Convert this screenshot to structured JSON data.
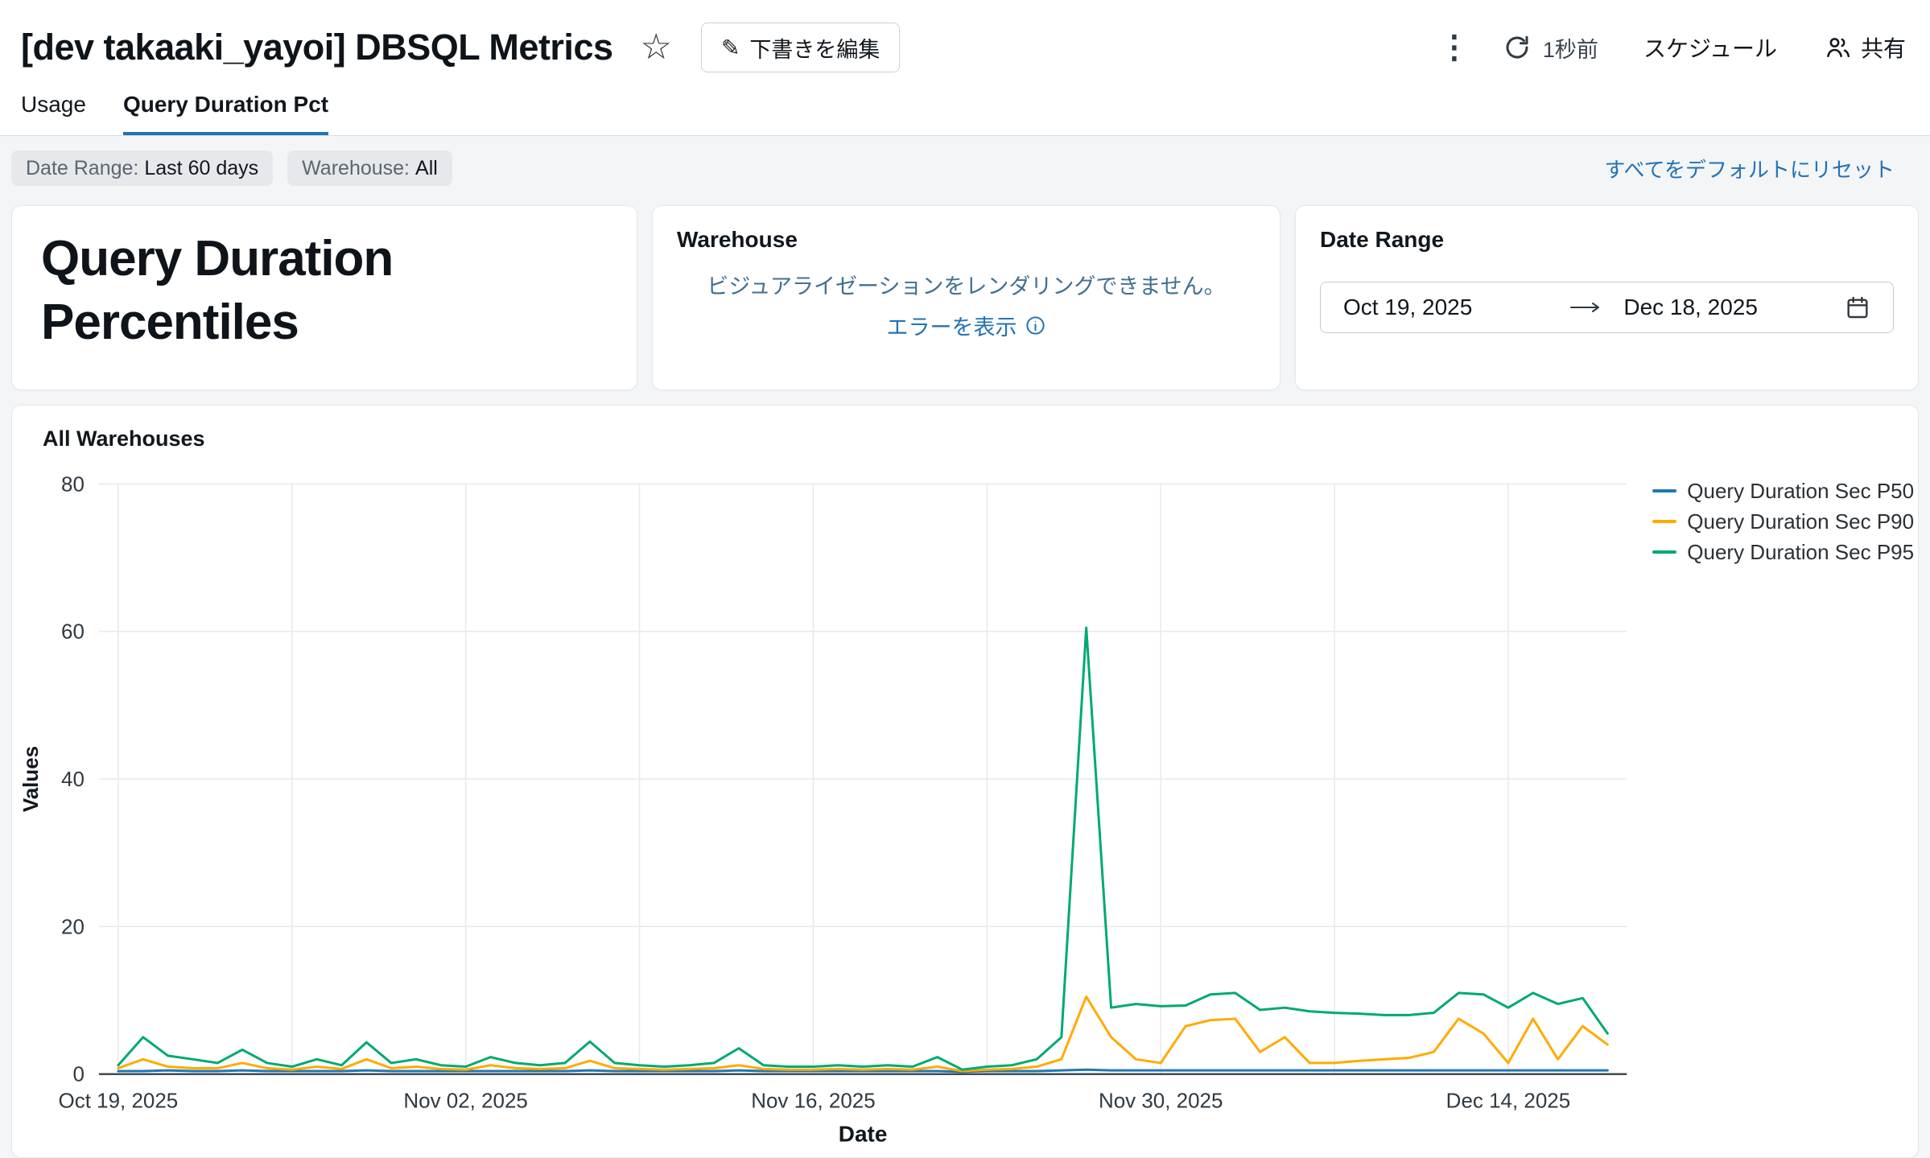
{
  "colors": {
    "accent": "#2272B4",
    "link": "#2272B4",
    "error_text": "#41708E",
    "series_p50": "#2077B4",
    "series_p90": "#FFAB00",
    "series_p95": "#00A972"
  },
  "icons": {
    "star": "☆",
    "pencil": "✎",
    "kebab": "⋮"
  },
  "header": {
    "title": "[dev takaaki_yayoi] DBSQL Metrics",
    "edit_draft_label": "下書きを編集",
    "last_refresh": "1秒前",
    "schedule_label": "スケジュール",
    "share_label": "共有"
  },
  "tabs": [
    {
      "label": "Usage",
      "active": false
    },
    {
      "label": "Query Duration Pct",
      "active": true
    }
  ],
  "filters": {
    "chips": [
      {
        "label": "Date Range:",
        "value": "Last 60 days"
      },
      {
        "label": "Warehouse:",
        "value": "All"
      }
    ],
    "reset_label": "すべてをデフォルトにリセット"
  },
  "cards": {
    "title_card": {
      "line1": "Query Duration",
      "line2": "Percentiles"
    },
    "warehouse_card": {
      "title": "Warehouse",
      "error_message": "ビジュアライゼーションをレンダリングできません。",
      "error_link": "エラーを表示"
    },
    "date_range_card": {
      "title": "Date Range",
      "start_date": "Oct 19, 2025",
      "end_date": "Dec 18, 2025"
    }
  },
  "chart_data": {
    "type": "line",
    "title": "All Warehouses",
    "xlabel": "Date",
    "ylabel": "Values",
    "ylim": [
      0,
      80
    ],
    "yticks": [
      0,
      20,
      40,
      60,
      80
    ],
    "grid": true,
    "legend_position": "right-top",
    "total_days": 60,
    "x_grid_interval_days": 7,
    "x_tick_days": [
      0,
      14,
      28,
      42,
      56
    ],
    "x_tick_labels": [
      "Oct 19, 2025",
      "Nov 02, 2025",
      "Nov 16, 2025",
      "Nov 30, 2025",
      "Dec 14, 2025"
    ],
    "x_start": "Oct 19, 2025",
    "x_end": "Dec 18, 2025",
    "series": [
      {
        "name": "Query Duration Sec P50",
        "color": "#2077B4",
        "values": [
          0.4,
          0.4,
          0.5,
          0.4,
          0.4,
          0.5,
          0.4,
          0.4,
          0.4,
          0.4,
          0.5,
          0.4,
          0.4,
          0.4,
          0.4,
          0.4,
          0.4,
          0.4,
          0.4,
          0.5,
          0.4,
          0.4,
          0.4,
          0.4,
          0.4,
          0.5,
          0.4,
          0.4,
          0.4,
          0.4,
          0.4,
          0.4,
          0.4,
          0.4,
          0.3,
          0.4,
          0.4,
          0.4,
          0.5,
          0.6,
          0.5,
          0.5,
          0.5,
          0.5,
          0.5,
          0.5,
          0.5,
          0.5,
          0.5,
          0.5,
          0.5,
          0.5,
          0.5,
          0.5,
          0.5,
          0.5,
          0.5,
          0.5,
          0.5,
          0.5,
          0.5
        ]
      },
      {
        "name": "Query Duration Sec P90",
        "color": "#FFAB00",
        "values": [
          0.8,
          2,
          1,
          0.8,
          0.8,
          1.5,
          0.8,
          0.6,
          1,
          0.7,
          2,
          0.8,
          1,
          0.7,
          0.6,
          1.2,
          0.8,
          0.7,
          0.8,
          1.8,
          0.8,
          0.7,
          0.6,
          0.7,
          0.8,
          1.2,
          0.7,
          0.6,
          0.6,
          0.7,
          0.6,
          0.7,
          0.6,
          1,
          0.4,
          0.6,
          0.7,
          1,
          2,
          10.5,
          5,
          2,
          1.5,
          6.5,
          7.3,
          7.5,
          3,
          5,
          1.5,
          1.5,
          1.8,
          2,
          2.2,
          3,
          7.5,
          5.5,
          1.5,
          7.5,
          2,
          6.5,
          4
        ]
      },
      {
        "name": "Query Duration Sec P95",
        "color": "#00A972",
        "values": [
          1.2,
          5,
          2.5,
          2,
          1.5,
          3.3,
          1.5,
          1,
          2,
          1.2,
          4.3,
          1.5,
          2,
          1.2,
          1,
          2.3,
          1.5,
          1.2,
          1.5,
          4.4,
          1.5,
          1.2,
          1,
          1.2,
          1.5,
          3.5,
          1.2,
          1,
          1,
          1.2,
          1,
          1.2,
          1,
          2.3,
          0.6,
          1,
          1.2,
          2,
          5,
          60.5,
          9,
          9.5,
          9.2,
          9.3,
          10.8,
          11,
          8.7,
          9,
          8.5,
          8.3,
          8.2,
          8,
          8,
          8.3,
          11,
          10.8,
          9,
          11,
          9.5,
          10.3,
          5.5
        ]
      }
    ]
  }
}
